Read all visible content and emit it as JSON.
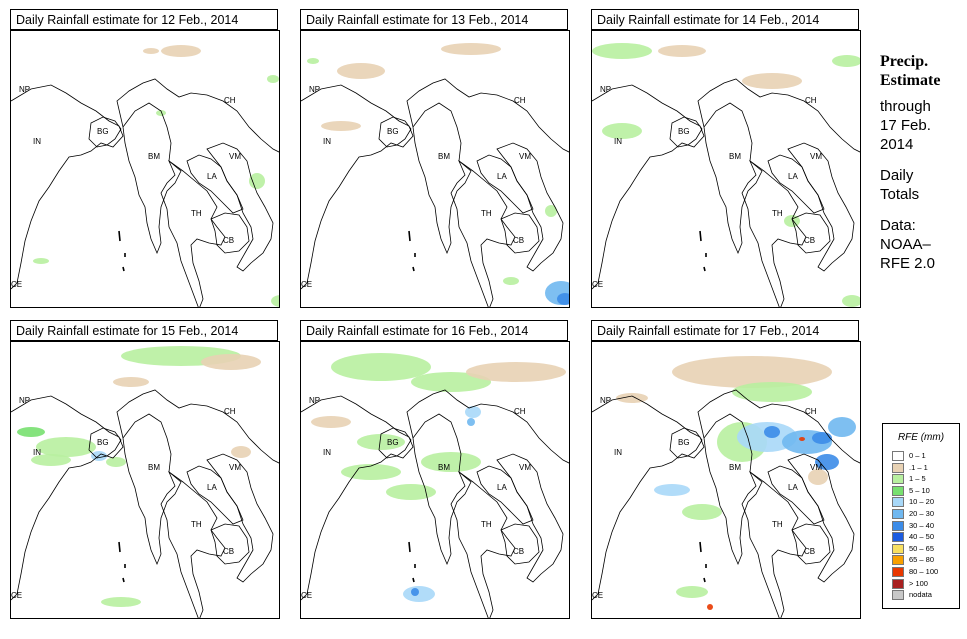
{
  "panels": [
    {
      "title": "Daily Rainfall estimate for  12 Feb., 2014",
      "date": "12 Feb., 2014"
    },
    {
      "title": "Daily Rainfall estimate for  13 Feb., 2014",
      "date": "13 Feb., 2014"
    },
    {
      "title": "Daily Rainfall estimate for  14 Feb., 2014",
      "date": "14 Feb., 2014"
    },
    {
      "title": "Daily Rainfall estimate for  15 Feb., 2014",
      "date": "15 Feb., 2014"
    },
    {
      "title": "Daily Rainfall estimate for  16 Feb., 2014",
      "date": "16 Feb., 2014"
    },
    {
      "title": "Daily Rainfall estimate for  17 Feb., 2014",
      "date": "17 Feb., 2014"
    }
  ],
  "country_labels": [
    "NP",
    "CH",
    "IN",
    "BG",
    "BM",
    "VM",
    "LA",
    "TH",
    "CB",
    "CE"
  ],
  "side_info": {
    "heading_line1": "Precip.",
    "heading_line2": "Estimate",
    "through": "through",
    "date_line1": "17 Feb.",
    "date_line2": "2014",
    "daily_line1": "Daily",
    "daily_line2": "Totals",
    "data_line1": "Data:",
    "data_line2": "NOAA–",
    "data_line3": "RFE 2.0"
  },
  "legend": {
    "title": "RFE (mm)",
    "items": [
      {
        "label": "0 – 1",
        "color": "#ffffff"
      },
      {
        "label": ".1 – 1",
        "color": "#e8d2b4"
      },
      {
        "label": "1 – 5",
        "color": "#b8f0a0"
      },
      {
        "label": "5 – 10",
        "color": "#78e070"
      },
      {
        "label": "10 – 20",
        "color": "#a8d8f8"
      },
      {
        "label": "20 – 30",
        "color": "#70b8f0"
      },
      {
        "label": "30 – 40",
        "color": "#3c8ce8"
      },
      {
        "label": "40 – 50",
        "color": "#1c5ce0"
      },
      {
        "label": "50 – 65",
        "color": "#f8e060"
      },
      {
        "label": "65 – 80",
        "color": "#f8a000"
      },
      {
        "label": "80 – 100",
        "color": "#e83800"
      },
      {
        "label": "> 100",
        "color": "#a82020"
      },
      {
        "label": "nodata",
        "color": "#c8c8c8"
      }
    ]
  }
}
